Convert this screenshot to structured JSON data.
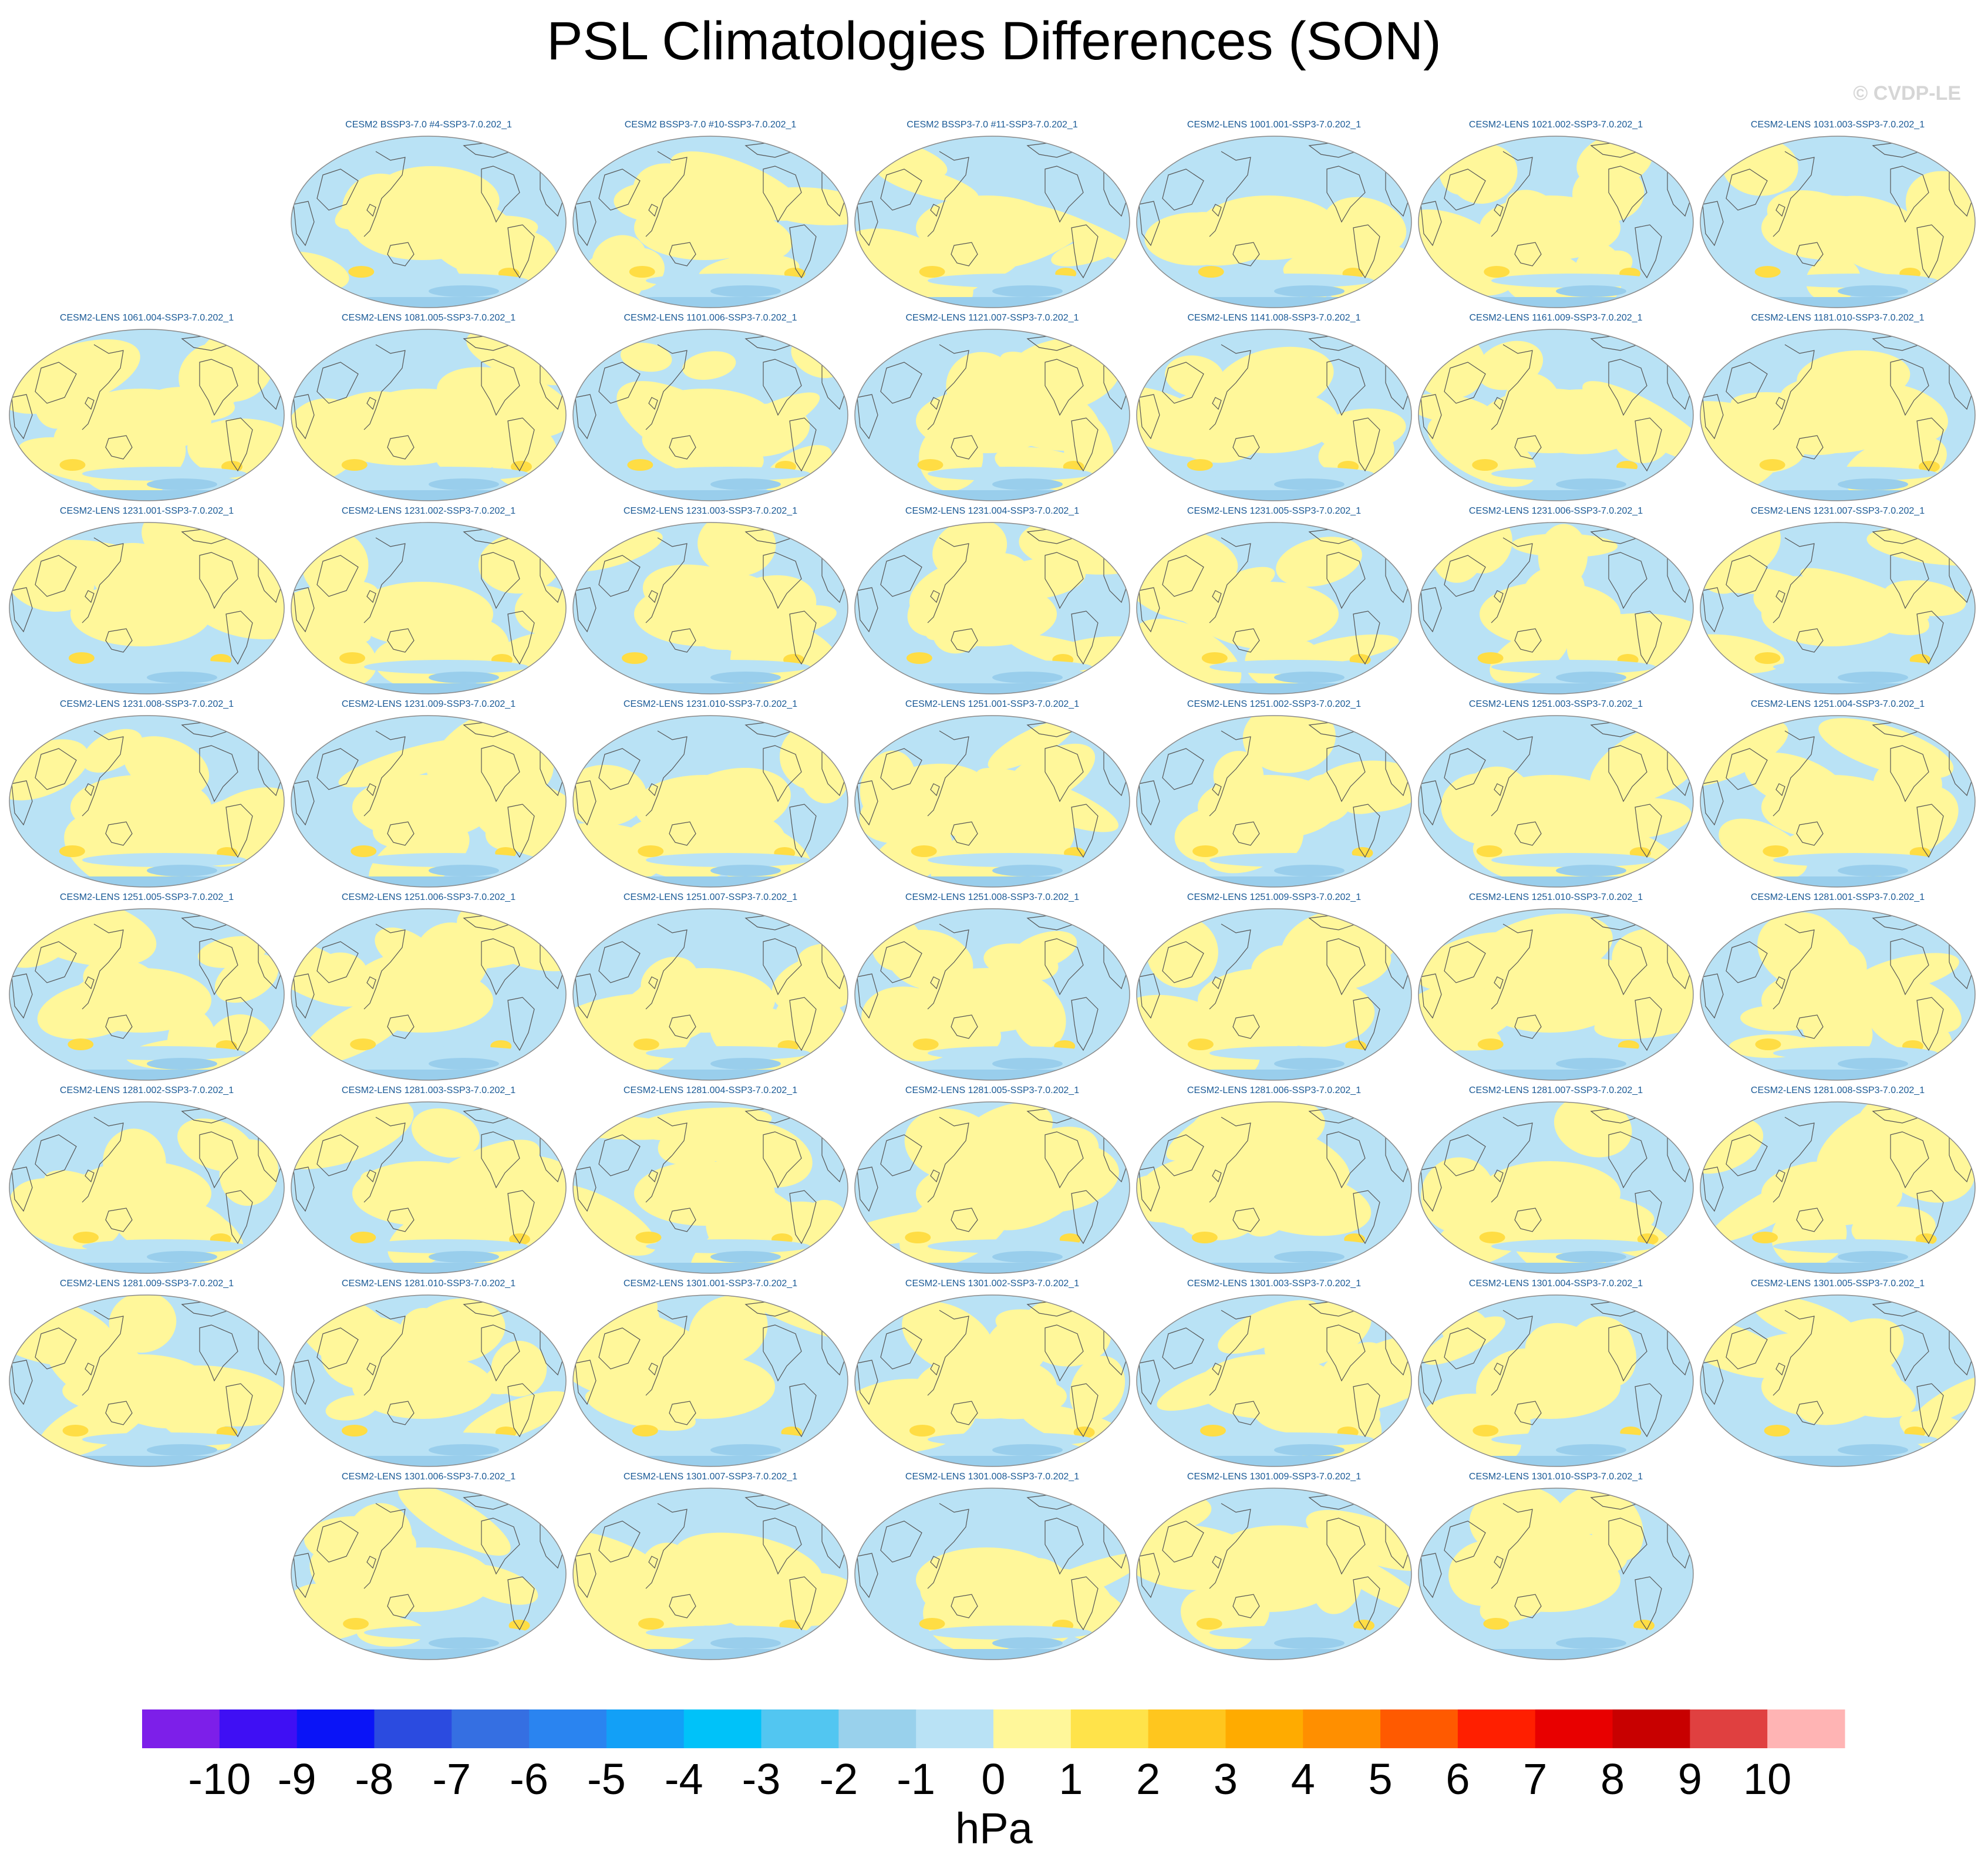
{
  "figure": {
    "title": "PSL Climatologies Differences (SON)",
    "credit": "© CVDP-LE"
  },
  "colors": {
    "positive_land": "#fff79a",
    "negative_blue": "#b9e2f5",
    "positive_strong": "#ffdd44",
    "negative_strong": "#99ceec",
    "outline": "#8a8a8a",
    "coast": "#555555",
    "label": "#1a5a96"
  },
  "rows": [
    [
      "CESM2 BSSP3-7.0 #4-SSP3-7.0.202_1",
      "CESM2 BSSP3-7.0 #10-SSP3-7.0.202_1",
      "CESM2 BSSP3-7.0 #11-SSP3-7.0.202_1",
      "CESM2-LENS 1001.001-SSP3-7.0.202_1",
      "CESM2-LENS 1021.002-SSP3-7.0.202_1",
      "CESM2-LENS 1031.003-SSP3-7.0.202_1"
    ],
    [
      "CESM2-LENS 1061.004-SSP3-7.0.202_1",
      "CESM2-LENS 1081.005-SSP3-7.0.202_1",
      "CESM2-LENS 1101.006-SSP3-7.0.202_1",
      "CESM2-LENS 1121.007-SSP3-7.0.202_1",
      "CESM2-LENS 1141.008-SSP3-7.0.202_1",
      "CESM2-LENS 1161.009-SSP3-7.0.202_1",
      "CESM2-LENS 1181.010-SSP3-7.0.202_1"
    ],
    [
      "CESM2-LENS 1231.001-SSP3-7.0.202_1",
      "CESM2-LENS 1231.002-SSP3-7.0.202_1",
      "CESM2-LENS 1231.003-SSP3-7.0.202_1",
      "CESM2-LENS 1231.004-SSP3-7.0.202_1",
      "CESM2-LENS 1231.005-SSP3-7.0.202_1",
      "CESM2-LENS 1231.006-SSP3-7.0.202_1",
      "CESM2-LENS 1231.007-SSP3-7.0.202_1"
    ],
    [
      "CESM2-LENS 1231.008-SSP3-7.0.202_1",
      "CESM2-LENS 1231.009-SSP3-7.0.202_1",
      "CESM2-LENS 1231.010-SSP3-7.0.202_1",
      "CESM2-LENS 1251.001-SSP3-7.0.202_1",
      "CESM2-LENS 1251.002-SSP3-7.0.202_1",
      "CESM2-LENS 1251.003-SSP3-7.0.202_1",
      "CESM2-LENS 1251.004-SSP3-7.0.202_1"
    ],
    [
      "CESM2-LENS 1251.005-SSP3-7.0.202_1",
      "CESM2-LENS 1251.006-SSP3-7.0.202_1",
      "CESM2-LENS 1251.007-SSP3-7.0.202_1",
      "CESM2-LENS 1251.008-SSP3-7.0.202_1",
      "CESM2-LENS 1251.009-SSP3-7.0.202_1",
      "CESM2-LENS 1251.010-SSP3-7.0.202_1",
      "CESM2-LENS 1281.001-SSP3-7.0.202_1"
    ],
    [
      "CESM2-LENS 1281.002-SSP3-7.0.202_1",
      "CESM2-LENS 1281.003-SSP3-7.0.202_1",
      "CESM2-LENS 1281.004-SSP3-7.0.202_1",
      "CESM2-LENS 1281.005-SSP3-7.0.202_1",
      "CESM2-LENS 1281.006-SSP3-7.0.202_1",
      "CESM2-LENS 1281.007-SSP3-7.0.202_1",
      "CESM2-LENS 1281.008-SSP3-7.0.202_1"
    ],
    [
      "CESM2-LENS 1281.009-SSP3-7.0.202_1",
      "CESM2-LENS 1281.010-SSP3-7.0.202_1",
      "CESM2-LENS 1301.001-SSP3-7.0.202_1",
      "CESM2-LENS 1301.002-SSP3-7.0.202_1",
      "CESM2-LENS 1301.003-SSP3-7.0.202_1",
      "CESM2-LENS 1301.004-SSP3-7.0.202_1",
      "CESM2-LENS 1301.005-SSP3-7.0.202_1"
    ],
    [
      "CESM2-LENS 1301.006-SSP3-7.0.202_1",
      "CESM2-LENS 1301.007-SSP3-7.0.202_1",
      "CESM2-LENS 1301.008-SSP3-7.0.202_1",
      "CESM2-LENS 1301.009-SSP3-7.0.202_1",
      "CESM2-LENS 1301.010-SSP3-7.0.202_1"
    ]
  ],
  "colorbar": {
    "units": "hPa",
    "ticks": [
      "-10",
      "-9",
      "-8",
      "-7",
      "-6",
      "-5",
      "-4",
      "-3",
      "-2",
      "-1",
      "0",
      "1",
      "2",
      "3",
      "4",
      "5",
      "6",
      "7",
      "8",
      "9",
      "10"
    ],
    "colors": [
      "#7d1fe9",
      "#3f0ff4",
      "#0a14f7",
      "#2b4be0",
      "#356fe2",
      "#2a84f0",
      "#12a0f7",
      "#00c2f9",
      "#52c6f1",
      "#99d1ec",
      "#b9e2f5",
      "#fff79a",
      "#ffe34a",
      "#ffc61e",
      "#ffab00",
      "#ff8f00",
      "#ff5a00",
      "#ff1f00",
      "#e80000",
      "#c80000",
      "#e04040",
      "#ffb4b4"
    ]
  }
}
